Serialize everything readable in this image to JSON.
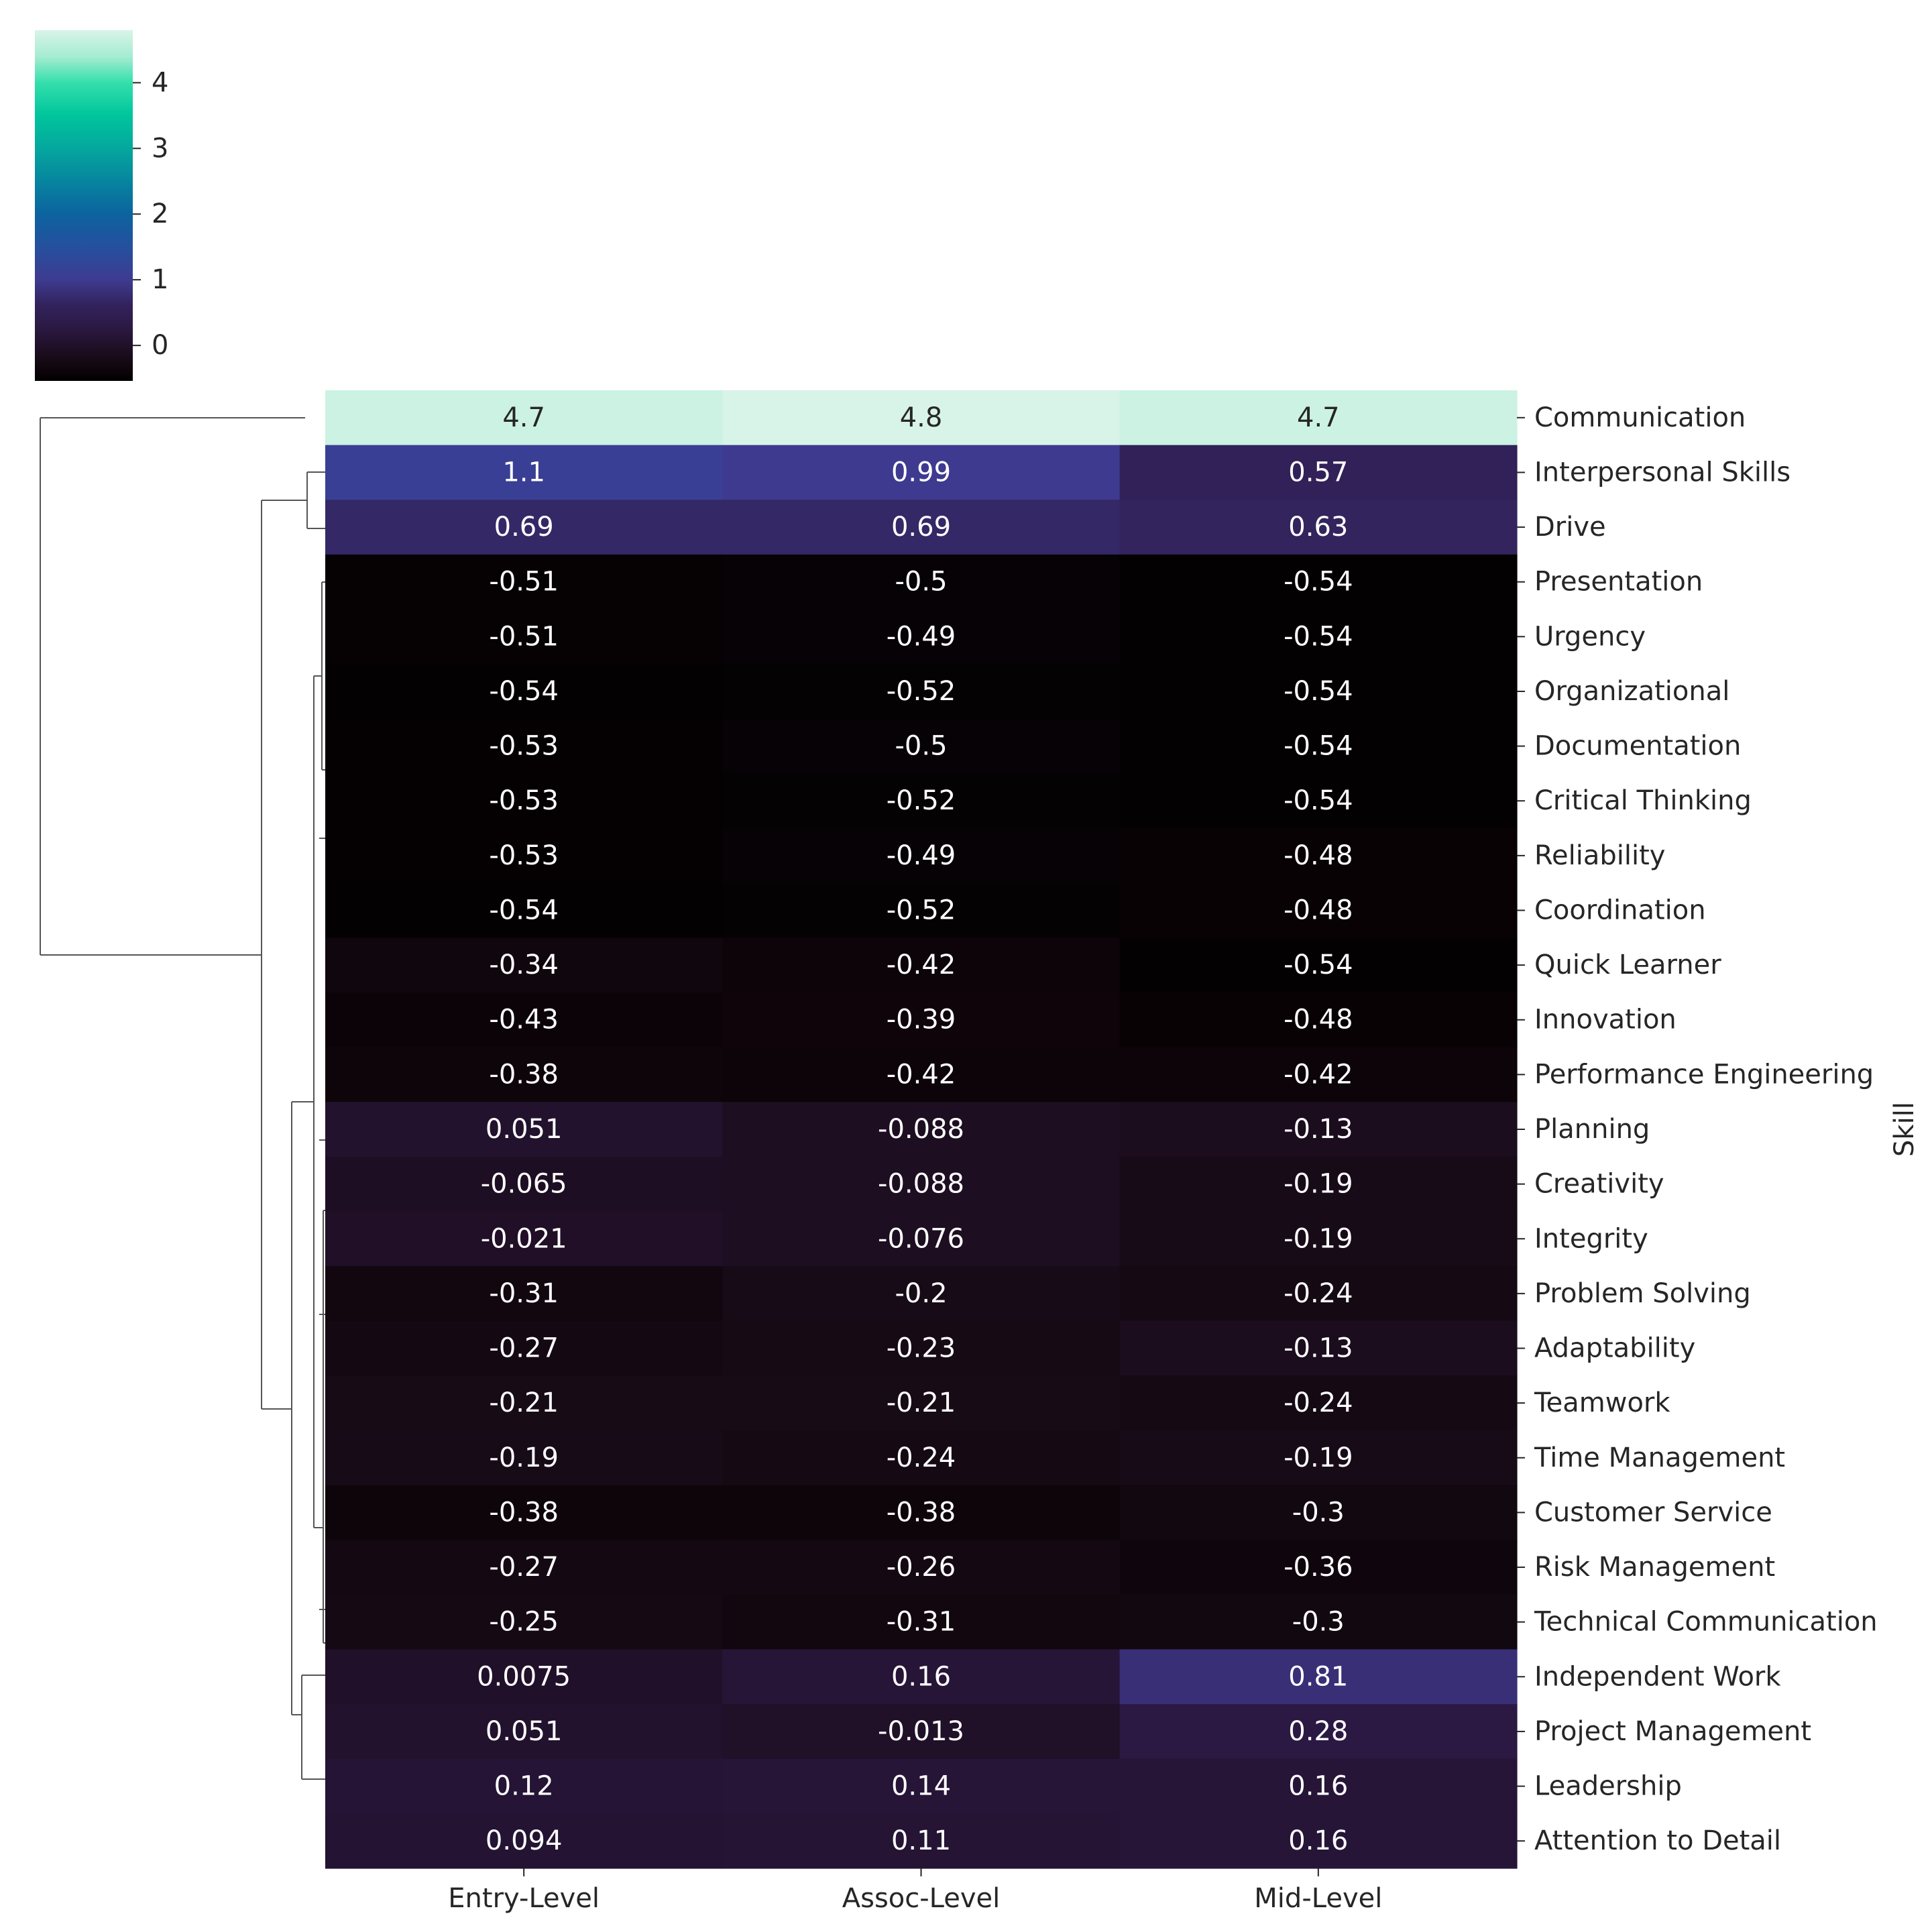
{
  "colors": {
    "tick": "#262626",
    "dendrogram": "#555555",
    "annotation_light": "#ffffff",
    "annotation_dark": "#262626",
    "colormap_stops": [
      {
        "v": -0.6,
        "c": "#000000"
      },
      {
        "v": -0.4,
        "c": "#0d0409"
      },
      {
        "v": -0.2,
        "c": "#170b17"
      },
      {
        "v": 0.0,
        "c": "#211029"
      },
      {
        "v": 0.3,
        "c": "#2c1a46"
      },
      {
        "v": 0.6,
        "c": "#32225a"
      },
      {
        "v": 1.0,
        "c": "#3e3b91"
      },
      {
        "v": 1.5,
        "c": "#25509e"
      },
      {
        "v": 2.0,
        "c": "#0c639f"
      },
      {
        "v": 2.5,
        "c": "#06859f"
      },
      {
        "v": 3.0,
        "c": "#05a79e"
      },
      {
        "v": 3.5,
        "c": "#00c59c"
      },
      {
        "v": 4.0,
        "c": "#34dfac"
      },
      {
        "v": 4.4,
        "c": "#a6ecd2"
      },
      {
        "v": 4.8,
        "c": "#d8f4e8"
      }
    ]
  },
  "chart_data": {
    "type": "heatmap",
    "title": "",
    "xlabel": "",
    "ylabel": "Skill",
    "columns": [
      "Entry-Level",
      "Assoc-Level",
      "Mid-Level"
    ],
    "rows": [
      "Communication",
      "Interpersonal Skills",
      "Drive",
      "Presentation",
      "Urgency",
      "Organizational",
      "Documentation",
      "Critical Thinking",
      "Reliability",
      "Coordination",
      "Quick Learner",
      "Innovation",
      "Performance Engineering",
      "Planning",
      "Creativity",
      "Integrity",
      "Problem Solving",
      "Adaptability",
      "Teamwork",
      "Time Management",
      "Customer Service",
      "Risk Management",
      "Technical Communication",
      "Independent Work",
      "Project Management",
      "Leadership",
      "Attention to Detail"
    ],
    "values": [
      [
        4.7,
        4.8,
        4.7
      ],
      [
        1.1,
        0.99,
        0.57
      ],
      [
        0.69,
        0.69,
        0.63
      ],
      [
        -0.51,
        -0.5,
        -0.54
      ],
      [
        -0.51,
        -0.49,
        -0.54
      ],
      [
        -0.54,
        -0.52,
        -0.54
      ],
      [
        -0.53,
        -0.5,
        -0.54
      ],
      [
        -0.53,
        -0.52,
        -0.54
      ],
      [
        -0.53,
        -0.49,
        -0.48
      ],
      [
        -0.54,
        -0.52,
        -0.48
      ],
      [
        -0.34,
        -0.42,
        -0.54
      ],
      [
        -0.43,
        -0.39,
        -0.48
      ],
      [
        -0.38,
        -0.42,
        -0.42
      ],
      [
        0.051,
        -0.088,
        -0.13
      ],
      [
        -0.065,
        -0.088,
        -0.19
      ],
      [
        -0.021,
        -0.076,
        -0.19
      ],
      [
        -0.31,
        -0.2,
        -0.24
      ],
      [
        -0.27,
        -0.23,
        -0.13
      ],
      [
        -0.21,
        -0.21,
        -0.24
      ],
      [
        -0.19,
        -0.24,
        -0.19
      ],
      [
        -0.38,
        -0.38,
        -0.3
      ],
      [
        -0.27,
        -0.26,
        -0.36
      ],
      [
        -0.25,
        -0.31,
        -0.3
      ],
      [
        0.0075,
        0.16,
        0.81
      ],
      [
        0.051,
        -0.013,
        0.28
      ],
      [
        0.12,
        0.14,
        0.16
      ],
      [
        0.094,
        0.11,
        0.16
      ]
    ],
    "labels": [
      [
        "4.7",
        "4.8",
        "4.7"
      ],
      [
        "1.1",
        "0.99",
        "0.57"
      ],
      [
        "0.69",
        "0.69",
        "0.63"
      ],
      [
        "-0.51",
        "-0.5",
        "-0.54"
      ],
      [
        "-0.51",
        "-0.49",
        "-0.54"
      ],
      [
        "-0.54",
        "-0.52",
        "-0.54"
      ],
      [
        "-0.53",
        "-0.5",
        "-0.54"
      ],
      [
        "-0.53",
        "-0.52",
        "-0.54"
      ],
      [
        "-0.53",
        "-0.49",
        "-0.48"
      ],
      [
        "-0.54",
        "-0.52",
        "-0.48"
      ],
      [
        "-0.34",
        "-0.42",
        "-0.54"
      ],
      [
        "-0.43",
        "-0.39",
        "-0.48"
      ],
      [
        "-0.38",
        "-0.42",
        "-0.42"
      ],
      [
        "0.051",
        "-0.088",
        "-0.13"
      ],
      [
        "-0.065",
        "-0.088",
        "-0.19"
      ],
      [
        "-0.021",
        "-0.076",
        "-0.19"
      ],
      [
        "-0.31",
        "-0.2",
        "-0.24"
      ],
      [
        "-0.27",
        "-0.23",
        "-0.13"
      ],
      [
        "-0.21",
        "-0.21",
        "-0.24"
      ],
      [
        "-0.19",
        "-0.24",
        "-0.19"
      ],
      [
        "-0.38",
        "-0.38",
        "-0.3"
      ],
      [
        "-0.27",
        "-0.26",
        "-0.36"
      ],
      [
        "-0.25",
        "-0.31",
        "-0.3"
      ],
      [
        "0.0075",
        "0.16",
        "0.81"
      ],
      [
        "0.051",
        "-0.013",
        "0.28"
      ],
      [
        "0.12",
        "0.14",
        "0.16"
      ],
      [
        "0.094",
        "0.11",
        "0.16"
      ]
    ],
    "colorbar": {
      "range": [
        -0.54,
        4.8
      ],
      "ticks": [
        0,
        1,
        2,
        3,
        4
      ],
      "tick_labels": [
        "0",
        "1",
        "2",
        "3",
        "4"
      ]
    },
    "row_dendrogram": true
  }
}
